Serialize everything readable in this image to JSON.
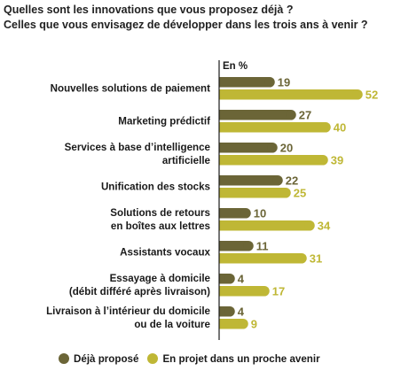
{
  "title_lines": [
    "Quelles sont les innovations que vous proposez déjà ?",
    "Celles que vous envisagez de développer dans les trois ans à venir ?"
  ],
  "colors": {
    "deja": "#6b6537",
    "projet": "#bfb735"
  },
  "chart_data": {
    "type": "bar",
    "orientation": "horizontal",
    "unit_label": "En %",
    "categories": [
      [
        "Nouvelles solutions de paiement"
      ],
      [
        "Marketing prédictif"
      ],
      [
        "Services à base d’intelligence",
        "artificielle"
      ],
      [
        "Unification des stocks"
      ],
      [
        "Solutions de retours",
        "en boîtes aux lettres"
      ],
      [
        "Assistants vocaux"
      ],
      [
        "Essayage à domicile",
        "(débit différé après livraison)"
      ],
      [
        "Livraison à l’intérieur du domicile",
        "ou de la voiture"
      ]
    ],
    "series": [
      {
        "name": "Déjà proposé",
        "values": [
          19,
          27,
          20,
          22,
          10,
          11,
          4,
          4
        ]
      },
      {
        "name": "En projet dans un proche avenir",
        "values": [
          52,
          40,
          39,
          25,
          34,
          31,
          17,
          9
        ]
      }
    ],
    "xlim": [
      0,
      52
    ],
    "legend_position": "bottom"
  }
}
